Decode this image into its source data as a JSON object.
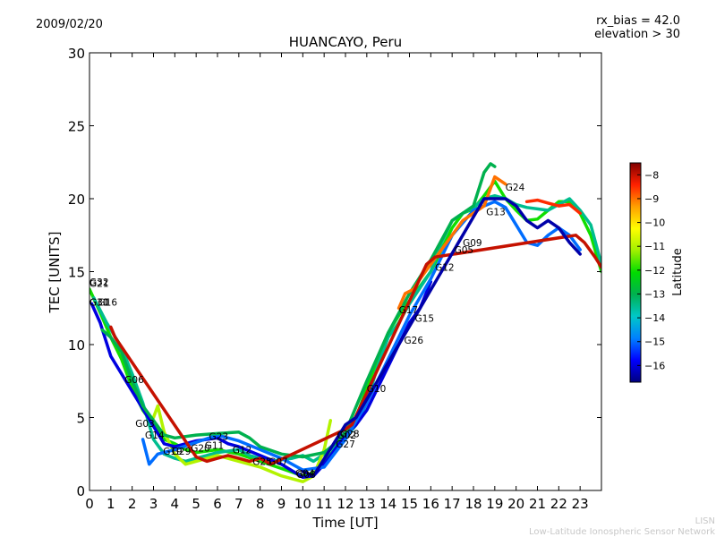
{
  "header": {
    "date": "2009/02/20",
    "rx_bias": "rx_bias = 42.0",
    "elevation": "elevation > 30"
  },
  "footer": {
    "credit_short": "LISN",
    "credit_long": "Low-Latitude Ionospheric Sensor Network"
  },
  "colorbar": {
    "label": "Latitude",
    "min": -16.7,
    "max": -7.5,
    "ticks": [
      -16,
      -15,
      -14,
      -13,
      -12,
      -11,
      -10,
      -9,
      -8
    ],
    "stops": [
      "#00007f",
      "#0000ff",
      "#0080ff",
      "#00c8c8",
      "#00b050",
      "#00dc00",
      "#a0f000",
      "#ffff00",
      "#ffa000",
      "#ff2000",
      "#800000"
    ]
  },
  "chart_data": {
    "type": "line",
    "title": "HUANCAYO, Peru",
    "xlabel": "Time [UT]",
    "ylabel": "TEC [UNITS]",
    "xlim": [
      0,
      24
    ],
    "ylim": [
      0,
      30
    ],
    "xticks": [
      0,
      1,
      2,
      3,
      4,
      5,
      6,
      7,
      8,
      9,
      10,
      11,
      12,
      13,
      14,
      15,
      16,
      17,
      18,
      19,
      20,
      21,
      22,
      23
    ],
    "yticks": [
      0,
      5,
      10,
      15,
      20,
      25,
      30
    ],
    "series": [
      {
        "lat": -12,
        "points": [
          [
            0,
            13.8
          ],
          [
            0.5,
            12.2
          ],
          [
            1,
            10.5
          ],
          [
            1.5,
            9.0
          ],
          [
            2,
            7.0
          ],
          [
            2.5,
            5.5
          ],
          [
            3,
            4.5
          ],
          [
            3.5,
            3.5
          ],
          [
            4,
            3.2
          ],
          [
            4.5,
            2.8
          ],
          [
            5,
            2.6
          ],
          [
            6,
            2.8
          ],
          [
            7,
            2.5
          ],
          [
            8,
            2.0
          ],
          [
            9,
            1.5
          ],
          [
            10,
            1.0
          ],
          [
            10.5,
            1.2
          ],
          [
            11,
            2.0
          ],
          [
            11.5,
            2.8
          ],
          [
            12,
            3.8
          ],
          [
            12.5,
            5.0
          ],
          [
            13,
            7.0
          ],
          [
            13.5,
            9.0
          ],
          [
            14,
            10.8
          ],
          [
            14.5,
            12.0
          ],
          [
            15,
            13.0
          ],
          [
            15.5,
            14.0
          ],
          [
            16,
            15.0
          ],
          [
            16.5,
            16.5
          ],
          [
            17,
            18.0
          ],
          [
            17.5,
            19.0
          ],
          [
            18,
            19.3
          ],
          [
            18.5,
            20.2
          ],
          [
            19,
            21.2
          ],
          [
            19.5,
            20.0
          ],
          [
            20,
            19.2
          ],
          [
            20.5,
            18.5
          ],
          [
            21,
            18.6
          ],
          [
            21.5,
            19.2
          ],
          [
            22,
            19.8
          ],
          [
            22.5,
            19.8
          ],
          [
            23,
            19.0
          ],
          [
            23.5,
            17.5
          ],
          [
            24,
            15.0
          ]
        ]
      },
      {
        "lat": -13.5,
        "points": [
          [
            0.2,
            13.2
          ],
          [
            0.8,
            11.5
          ],
          [
            1.5,
            9.8
          ],
          [
            2,
            8.0
          ],
          [
            2.5,
            6.0
          ],
          [
            3,
            3.5
          ],
          [
            3.5,
            2.5
          ],
          [
            4,
            2.2
          ],
          [
            4.5,
            2.0
          ],
          [
            5,
            2.2
          ],
          [
            6,
            2.6
          ],
          [
            7,
            2.8
          ],
          [
            7.5,
            2.4
          ],
          [
            8.5,
            2.0
          ],
          [
            9.5,
            2.2
          ],
          [
            10,
            2.4
          ],
          [
            10.5,
            2.0
          ],
          [
            11,
            2.5
          ],
          [
            11.5,
            3.0
          ],
          [
            12,
            3.6
          ],
          [
            12.5,
            4.5
          ],
          [
            13,
            6.0
          ],
          [
            13.5,
            8.5
          ],
          [
            14,
            10.5
          ],
          [
            14.5,
            11.5
          ],
          [
            15,
            12.8
          ],
          [
            16,
            15.0
          ],
          [
            16.5,
            17.0
          ],
          [
            17,
            18.5
          ],
          [
            17.5,
            19.0
          ],
          [
            18,
            19.4
          ],
          [
            18.5,
            20.0
          ],
          [
            19,
            20.2
          ],
          [
            19.5,
            20.0
          ],
          [
            20,
            19.6
          ],
          [
            20.5,
            19.4
          ],
          [
            21,
            19.3
          ],
          [
            21.5,
            19.2
          ],
          [
            22,
            19.6
          ],
          [
            22.5,
            20.0
          ],
          [
            23,
            19.2
          ],
          [
            23.5,
            18.2
          ],
          [
            24,
            15.5
          ]
        ]
      },
      {
        "lat": -11,
        "points": [
          [
            3,
            5.0
          ],
          [
            3.2,
            5.8
          ],
          [
            3.5,
            4.0
          ],
          [
            4,
            2.5
          ],
          [
            4.5,
            1.8
          ],
          [
            5,
            2.0
          ],
          [
            6,
            2.4
          ],
          [
            7,
            2.0
          ],
          [
            8,
            1.6
          ],
          [
            9,
            1.0
          ],
          [
            10,
            0.6
          ],
          [
            10.5,
            1.0
          ],
          [
            11,
            2.8
          ],
          [
            11.3,
            4.8
          ]
        ]
      },
      {
        "lat": -16,
        "points": [
          [
            0.1,
            12.8
          ],
          [
            0.5,
            11.5
          ],
          [
            1,
            9.2
          ],
          [
            3.5,
            3.2
          ],
          [
            4,
            3.0
          ],
          [
            5,
            3.4
          ],
          [
            6,
            3.6
          ],
          [
            6.5,
            3.2
          ],
          [
            7,
            3.0
          ],
          [
            8,
            2.4
          ],
          [
            9,
            1.8
          ],
          [
            10,
            0.9
          ],
          [
            10.5,
            1.0
          ],
          [
            11,
            1.8
          ],
          [
            12,
            3.8
          ],
          [
            12.5,
            4.5
          ],
          [
            13,
            5.5
          ],
          [
            13.5,
            7.0
          ],
          [
            14,
            8.5
          ],
          [
            14.5,
            10.0
          ],
          [
            15,
            11.5
          ],
          [
            15.5,
            12.5
          ],
          [
            16,
            14.3
          ]
        ]
      },
      {
        "lat": -15,
        "points": [
          [
            2.5,
            3.5
          ],
          [
            2.8,
            1.8
          ],
          [
            3.2,
            2.5
          ],
          [
            4,
            2.8
          ],
          [
            5,
            3.3
          ],
          [
            6,
            3.8
          ],
          [
            7,
            3.4
          ],
          [
            8,
            2.8
          ],
          [
            9,
            2.2
          ],
          [
            10,
            1.4
          ],
          [
            11,
            1.6
          ],
          [
            12,
            3.5
          ],
          [
            13,
            6.0
          ],
          [
            14,
            9.0
          ],
          [
            15,
            12.0
          ],
          [
            16,
            14.5
          ],
          [
            17,
            17.5
          ],
          [
            18,
            19.2
          ],
          [
            18.5,
            19.5
          ],
          [
            19,
            19.8
          ],
          [
            19.5,
            19.4
          ],
          [
            20,
            18.2
          ],
          [
            20.5,
            17.0
          ],
          [
            21,
            16.8
          ],
          [
            21.5,
            17.5
          ],
          [
            22,
            18.0
          ],
          [
            22.5,
            17.5
          ],
          [
            23,
            16.5
          ]
        ]
      },
      {
        "lat": -13,
        "points": [
          [
            0.6,
            11.0
          ],
          [
            1,
            10.5
          ],
          [
            1.5,
            9.5
          ],
          [
            2,
            7.5
          ],
          [
            2.5,
            5.8
          ],
          [
            3,
            4.8
          ],
          [
            3.5,
            3.8
          ],
          [
            4,
            3.6
          ],
          [
            5,
            3.8
          ],
          [
            6,
            3.9
          ],
          [
            7,
            4.0
          ],
          [
            7.5,
            3.6
          ],
          [
            8,
            3.0
          ],
          [
            9,
            2.5
          ],
          [
            10,
            2.3
          ],
          [
            11,
            2.6
          ],
          [
            11.5,
            3.2
          ],
          [
            12,
            4.0
          ],
          [
            13,
            7.5
          ],
          [
            14,
            10.8
          ],
          [
            15,
            13.5
          ],
          [
            16,
            15.8
          ],
          [
            17,
            18.5
          ],
          [
            18,
            19.5
          ],
          [
            18.5,
            21.8
          ],
          [
            18.8,
            22.4
          ],
          [
            19,
            22.2
          ]
        ]
      },
      {
        "lat": -9,
        "points": [
          [
            14.5,
            12.5
          ],
          [
            14.8,
            13.5
          ],
          [
            15.2,
            13.8
          ],
          [
            15.5,
            14.5
          ],
          [
            17.5,
            18.5
          ],
          [
            18.5,
            19.5
          ],
          [
            19,
            21.5
          ],
          [
            19.5,
            21.0
          ]
        ]
      },
      {
        "lat": -8.5,
        "points": [
          [
            20.5,
            19.8
          ],
          [
            21,
            19.9
          ],
          [
            21.5,
            19.7
          ],
          [
            22,
            19.5
          ],
          [
            22.5,
            19.6
          ],
          [
            23,
            19.0
          ]
        ]
      },
      {
        "lat": -8,
        "points": [
          [
            1,
            11.2
          ],
          [
            1.2,
            10.5
          ],
          [
            5,
            2.3
          ],
          [
            5.5,
            2.0
          ],
          [
            6,
            2.2
          ],
          [
            6.5,
            2.4
          ],
          [
            7,
            2.2
          ],
          [
            7.5,
            2.0
          ],
          [
            8,
            2.2
          ],
          [
            8.5,
            1.8
          ],
          [
            12,
            4.2
          ],
          [
            12.3,
            4.5
          ],
          [
            15.8,
            15.5
          ],
          [
            16.2,
            16.0
          ],
          [
            22.8,
            17.5
          ],
          [
            23.2,
            17.0
          ],
          [
            23.7,
            16.0
          ],
          [
            24,
            15.3
          ]
        ]
      },
      {
        "lat": -16.4,
        "points": [
          [
            10,
            1.3
          ],
          [
            10.5,
            1.0
          ],
          [
            12,
            4.5
          ],
          [
            12.5,
            5.0
          ],
          [
            18.5,
            20.0
          ],
          [
            19.5,
            20.0
          ],
          [
            20,
            19.5
          ],
          [
            20.5,
            18.5
          ],
          [
            21,
            18.0
          ],
          [
            21.5,
            18.5
          ],
          [
            22,
            18.0
          ],
          [
            22.5,
            17.0
          ],
          [
            23,
            16.2
          ]
        ]
      }
    ],
    "prn_labels": [
      {
        "text": "G32",
        "x": 0.0,
        "y": 14.3
      },
      {
        "text": "G21",
        "x": 0.0,
        "y": 14.2
      },
      {
        "text": "G30",
        "x": 0.0,
        "y": 12.9
      },
      {
        "text": "G31",
        "x": 0.0,
        "y": 12.9
      },
      {
        "text": "G16",
        "x": 0.4,
        "y": 12.9
      },
      {
        "text": "G06",
        "x": 1.65,
        "y": 7.6
      },
      {
        "text": "G03",
        "x": 2.15,
        "y": 4.6
      },
      {
        "text": "G14",
        "x": 2.6,
        "y": 3.8
      },
      {
        "text": "G19",
        "x": 3.45,
        "y": 2.7
      },
      {
        "text": "G29",
        "x": 3.85,
        "y": 2.7
      },
      {
        "text": "G20",
        "x": 4.75,
        "y": 2.9
      },
      {
        "text": "G11",
        "x": 5.4,
        "y": 3.1
      },
      {
        "text": "G23",
        "x": 5.6,
        "y": 3.7
      },
      {
        "text": "G12",
        "x": 6.7,
        "y": 2.8
      },
      {
        "text": "G25",
        "x": 7.65,
        "y": 2.0
      },
      {
        "text": "G07",
        "x": 8.4,
        "y": 2.0
      },
      {
        "text": "G04",
        "x": 9.65,
        "y": 1.2
      },
      {
        "text": "G08",
        "x": 9.7,
        "y": 1.1
      },
      {
        "text": "G28",
        "x": 11.75,
        "y": 3.9
      },
      {
        "text": "G02",
        "x": 11.6,
        "y": 3.8
      },
      {
        "text": "G27",
        "x": 11.55,
        "y": 3.2
      },
      {
        "text": "G10",
        "x": 13.0,
        "y": 7.0
      },
      {
        "text": "G17",
        "x": 14.5,
        "y": 12.4
      },
      {
        "text": "G15",
        "x": 15.25,
        "y": 11.8
      },
      {
        "text": "G26",
        "x": 14.75,
        "y": 10.3
      },
      {
        "text": "G12",
        "x": 16.2,
        "y": 15.3
      },
      {
        "text": "G05",
        "x": 17.1,
        "y": 16.5
      },
      {
        "text": "G09",
        "x": 17.5,
        "y": 17.0
      },
      {
        "text": "G13",
        "x": 18.6,
        "y": 19.1
      },
      {
        "text": "G24",
        "x": 19.5,
        "y": 20.8
      }
    ]
  }
}
